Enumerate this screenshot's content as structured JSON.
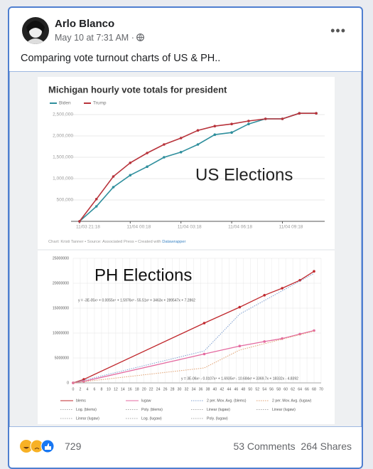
{
  "post": {
    "author": "Arlo Blanco",
    "timestamp": "May 10 at 7:31 AM",
    "separator": "·",
    "text": "Comparing vote turnout charts of US & PH..",
    "reaction_count": 729,
    "comments": "53 Comments",
    "shares": "264 Shares"
  },
  "chart_data": [
    {
      "type": "line",
      "title": "Michigan hourly vote totals for president",
      "annotation": "US Elections",
      "source": "Chart: Kristi Tanner • Source: Associated Press • Created with ",
      "source_link": "Datawrapper",
      "x": [
        0,
        1,
        2,
        3,
        4,
        5,
        6,
        7,
        8,
        9,
        10,
        11,
        12,
        13,
        14
      ],
      "xlim": [
        -0.5,
        14.5
      ],
      "xticks": [
        {
          "value": 0,
          "label": "11/03 21:18"
        },
        {
          "value": 3,
          "label": "11/04 00:18"
        },
        {
          "value": 6,
          "label": "11/04 03:18"
        },
        {
          "value": 9,
          "label": "11/04 06:18"
        },
        {
          "value": 12,
          "label": "11/04 09:18"
        }
      ],
      "ylim": [
        0,
        2700000
      ],
      "yticks": [
        {
          "value": 500000,
          "label": "500,000"
        },
        {
          "value": 1000000,
          "label": "1,000,000"
        },
        {
          "value": 1500000,
          "label": "1,500,000"
        },
        {
          "value": 2000000,
          "label": "2,000,000"
        },
        {
          "value": 2500000,
          "label": "2,500,000"
        }
      ],
      "grid": true,
      "series": [
        {
          "name": "Biden",
          "color": "#2f8f9d",
          "values": [
            0,
            350000,
            800000,
            1080000,
            1280000,
            1500000,
            1620000,
            1800000,
            2030000,
            2080000,
            2280000,
            2400000,
            2400000,
            2530000,
            2530000
          ]
        },
        {
          "name": "Trump",
          "color": "#b8333b",
          "values": [
            0,
            520000,
            1050000,
            1370000,
            1600000,
            1800000,
            1950000,
            2130000,
            2230000,
            2280000,
            2350000,
            2400000,
            2400000,
            2530000,
            2530000
          ]
        }
      ]
    },
    {
      "type": "line",
      "annotation": "PH Elections",
      "equations": [
        "y = -3E-05x⁵ + 0.0055x⁴ + 1.5976x³ - 55.51x² + 3463x + 289547x + 7.2862",
        "y = 3E-06x⁵ - 0.0107x⁴ + 1.6935x³ - 10.684x² + 3369.7x + 18332x - 4.8392"
      ],
      "xlim": [
        0,
        70
      ],
      "xticks": [
        0,
        2,
        4,
        6,
        8,
        10,
        12,
        14,
        16,
        18,
        20,
        22,
        24,
        26,
        28,
        30,
        32,
        34,
        36,
        38,
        40,
        42,
        44,
        46,
        48,
        50,
        52,
        54,
        56,
        58,
        60,
        62,
        64,
        66,
        68,
        70
      ],
      "ylim": [
        0,
        25000000
      ],
      "yticks": [
        0,
        5000000,
        10000000,
        15000000,
        20000000,
        25000000
      ],
      "grid": true,
      "series": [
        {
          "name": "blems",
          "color": "#c0282d",
          "markers": true,
          "x": [
            0,
            3,
            37,
            47,
            54,
            59,
            64,
            68
          ],
          "values": [
            0,
            700000,
            12000000,
            15200000,
            17600000,
            19000000,
            20600000,
            22400000
          ]
        },
        {
          "name": "lugaw",
          "color": "#e46aa0",
          "markers": true,
          "x": [
            0,
            3,
            37,
            47,
            54,
            59,
            64,
            68
          ],
          "values": [
            0,
            300000,
            5800000,
            7400000,
            8300000,
            8900000,
            9800000,
            10500000
          ]
        },
        {
          "name": "2 per. Mov. Avg. (blems)",
          "color": "#7f9fd0",
          "dash": "dotted",
          "x": [
            0,
            37,
            47,
            68
          ],
          "values": [
            0,
            6400000,
            13800000,
            22000000
          ]
        },
        {
          "name": "2 per. Mov. Avg. (lugaw)",
          "color": "#e0a070",
          "dash": "dotted",
          "x": [
            0,
            37,
            47,
            68
          ],
          "values": [
            0,
            3000000,
            6600000,
            10400000
          ]
        }
      ],
      "legend_extra": [
        "Log. (blems)",
        "Poly. (blems)",
        "Linear (lugaw)",
        "Linear (lugaw)",
        "Linear (lugaw)",
        "Log. (lugaw)",
        "Poly. (lugaw)"
      ]
    }
  ]
}
